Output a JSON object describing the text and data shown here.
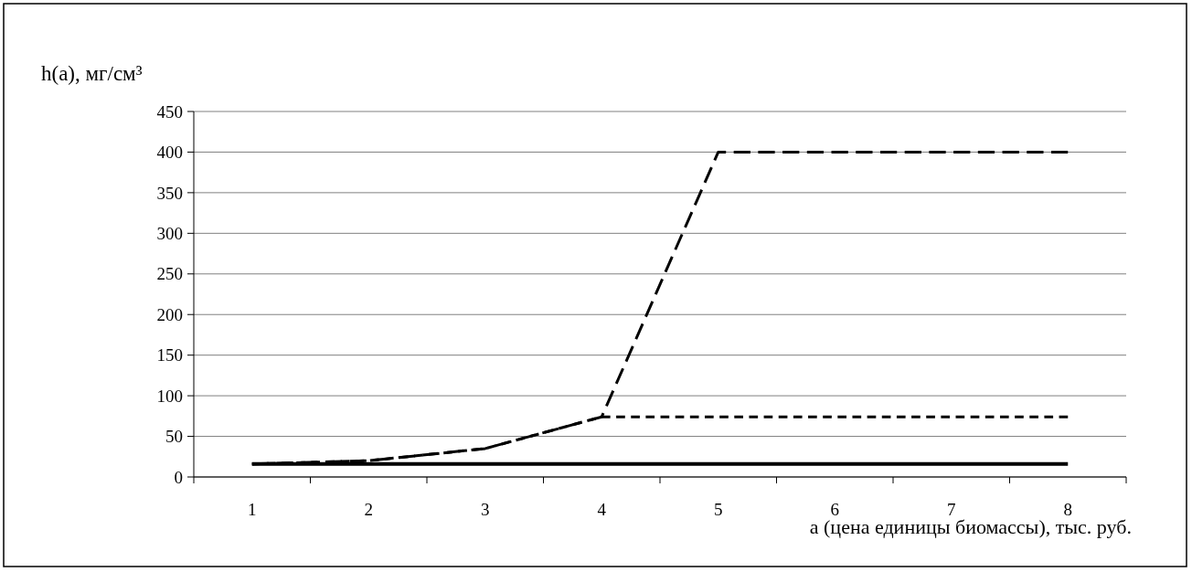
{
  "chart_data": {
    "type": "line",
    "ylabel": "h(a), мг/см³",
    "xlabel": "a (цена единицы биомассы), тыс. руб.",
    "categories": [
      "1",
      "2",
      "3",
      "4",
      "5",
      "6",
      "7",
      "8"
    ],
    "ylim": [
      0,
      450
    ],
    "yticks": [
      0,
      50,
      100,
      150,
      200,
      250,
      300,
      350,
      400,
      450
    ],
    "grid": "y",
    "marker": "none",
    "series": [
      {
        "color": "#000000",
        "line_style": "solid",
        "values": [
          16,
          16,
          16,
          16,
          16,
          16,
          16,
          16
        ]
      },
      {
        "color": "#000000",
        "line_style": "dotted",
        "values": [
          16,
          20,
          35,
          74,
          74,
          74,
          74,
          74
        ]
      },
      {
        "color": "#000000",
        "line_style": "dashed",
        "values": [
          16,
          20,
          35,
          74,
          400,
          400,
          400,
          400
        ]
      }
    ]
  }
}
